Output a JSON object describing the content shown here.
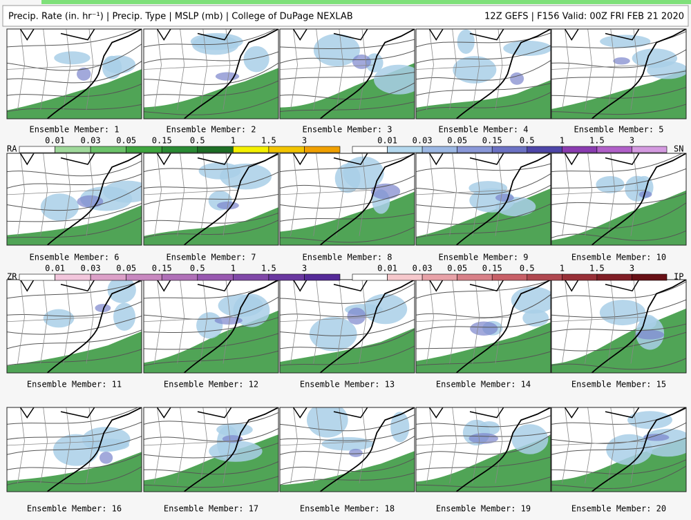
{
  "header": {
    "title": "Precip. Rate (in. hr⁻¹) | Precip. Type | MSLP (mb) | College of DuPage NEXLAB",
    "run": "12Z GEFS | F156 Valid: 00Z FRI FEB 21 2020"
  },
  "panels": [
    "Ensemble Member: 1",
    "Ensemble Member: 2",
    "Ensemble Member: 3",
    "Ensemble Member: 4",
    "Ensemble Member: 5",
    "Ensemble Member: 6",
    "Ensemble Member: 7",
    "Ensemble Member: 8",
    "Ensemble Member: 9",
    "Ensemble Member: 10",
    "Ensemble Member: 11",
    "Ensemble Member: 12",
    "Ensemble Member: 13",
    "Ensemble Member: 14",
    "Ensemble Member: 15",
    "Ensemble Member: 16",
    "Ensemble Member: 17",
    "Ensemble Member: 18",
    "Ensemble Member: 19",
    "Ensemble Member: 20"
  ],
  "legends": [
    {
      "name": "RA",
      "labels": [
        "0.01",
        "0.03",
        "0.05",
        "0.15",
        "0.5",
        "1",
        "1.5",
        "3"
      ],
      "colors": [
        "#ffffff",
        "#9fd89a",
        "#6cc26a",
        "#3fa53f",
        "#2a8a34",
        "#1d6e26",
        "#f4f000",
        "#f2c400",
        "#f0a000"
      ]
    },
    {
      "name": "SN",
      "labels": [
        "0.01",
        "0.03",
        "0.05",
        "0.15",
        "0.5",
        "1",
        "1.5",
        "3"
      ],
      "colors": [
        "#ffffff",
        "#b4d8ee",
        "#9cb8e4",
        "#8a98d8",
        "#6c72c4",
        "#4e46a8",
        "#8a3cb0",
        "#b060c8",
        "#d49ae0"
      ]
    },
    {
      "name": "ZR",
      "labels": [
        "0.01",
        "0.03",
        "0.05",
        "0.15",
        "0.5",
        "1",
        "1.5",
        "3"
      ],
      "colors": [
        "#ffffff",
        "#f2c6dc",
        "#dca0c8",
        "#c888c0",
        "#b070b8",
        "#9858b0",
        "#8048a8",
        "#6a38a0",
        "#552a98"
      ]
    },
    {
      "name": "IP",
      "labels": [
        "0.01",
        "0.03",
        "0.05",
        "0.15",
        "0.5",
        "1",
        "1.5",
        "3"
      ],
      "colors": [
        "#ffffff",
        "#f6c8cc",
        "#e8a2a8",
        "#d88088",
        "#c86068",
        "#b04850",
        "#983038",
        "#801e26",
        "#681016"
      ]
    }
  ]
}
